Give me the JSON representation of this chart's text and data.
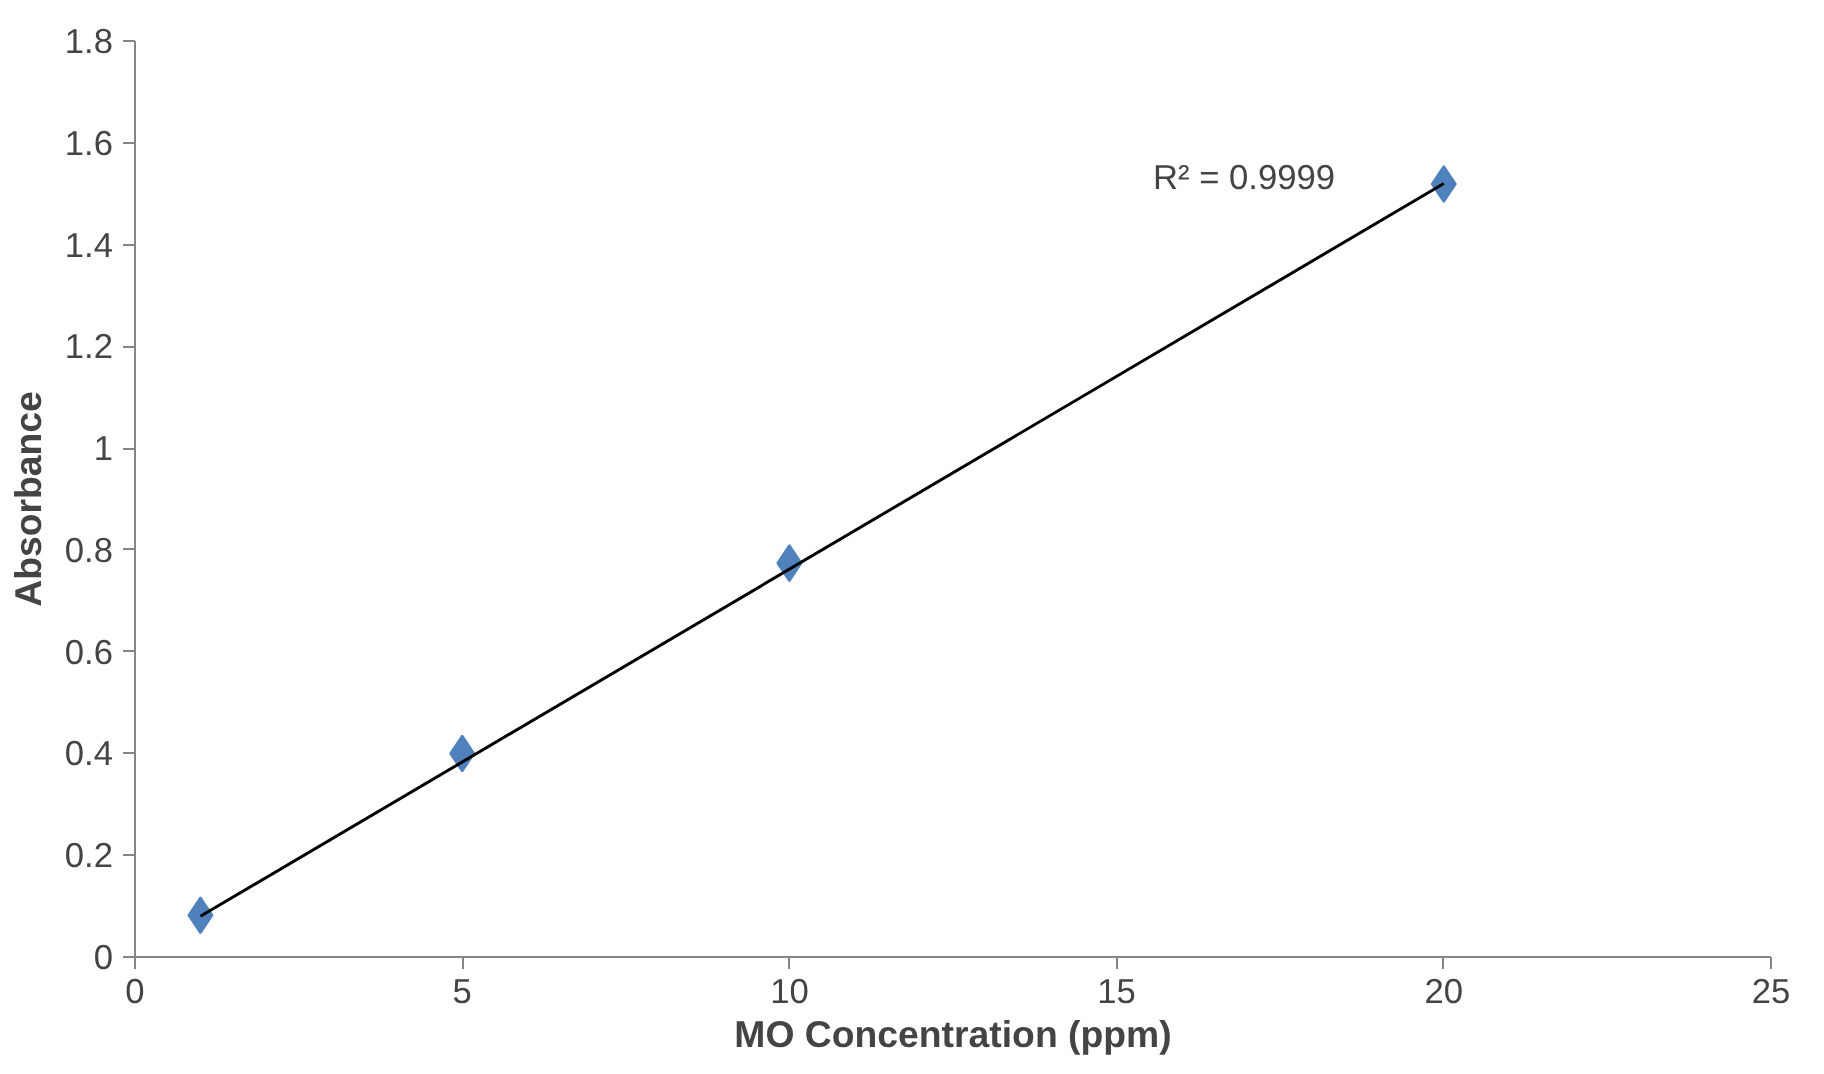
{
  "chart_data": {
    "type": "scatter",
    "xlabel": "MO Concentration (ppm)",
    "ylabel": "Absorbance",
    "x": [
      1,
      5,
      10,
      20
    ],
    "series": [
      {
        "color": "#4f81bd",
        "values": [
          0.082,
          0.4,
          0.774,
          1.519
        ],
        "marker": "diamond"
      },
      {
        "type": "line",
        "color": "#000000",
        "x": [
          1,
          20
        ],
        "values": [
          0.08,
          1.52
        ],
        "marker": "none",
        "line_style": "solid"
      }
    ],
    "annotations": [
      "R² = 0.9999"
    ],
    "xlim": [
      0,
      25
    ],
    "xticks": [
      0,
      5,
      10,
      15,
      20,
      25
    ],
    "ylim": [
      0,
      1.8
    ],
    "yticks": [
      0,
      0.2,
      0.4,
      0.6,
      0.8,
      1,
      1.2,
      1.4,
      1.6,
      1.8
    ],
    "grid": false
  }
}
